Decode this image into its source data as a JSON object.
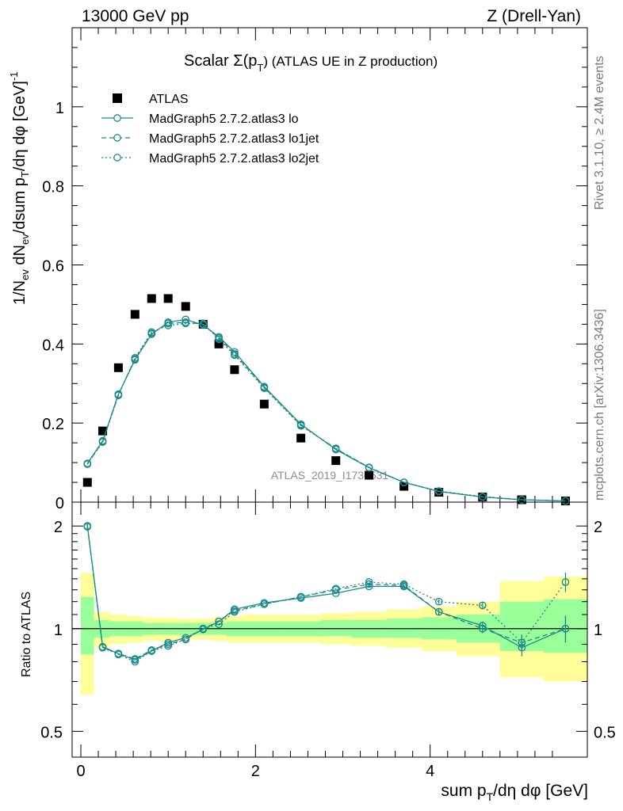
{
  "header": {
    "left": "13000 GeV pp",
    "right": "Z (Drell-Yan)"
  },
  "side_text": {
    "rivet": "Rivet 3.1.10, ≥ 2.4M events",
    "mcplots": "mcplots.cern.ch [arXiv:1306.3436]"
  },
  "chart_data": [
    {
      "type": "line",
      "panel": "main",
      "title_main": "Scalar Σ(p",
      "title_sub": "T",
      "title_end": ") (ATLAS UE in Z production)",
      "ylabel": "1/N_ev dN_ev/dsum p_T/dη dφ [GeV]^-1",
      "watermark": "ATLAS_2019_I1736531",
      "xlim": [
        -0.1,
        5.8
      ],
      "ylim": [
        0,
        1.2
      ],
      "yticks": [
        0,
        0.2,
        0.4,
        0.6,
        0.8,
        1
      ],
      "ytick_labels": [
        "0",
        "0.2",
        "0.4",
        "0.6",
        "0.8",
        "1"
      ],
      "legend_position": "top-left",
      "x": [
        0.075,
        0.25,
        0.43,
        0.62,
        0.81,
        1.0,
        1.2,
        1.4,
        1.58,
        1.76,
        2.1,
        2.52,
        2.92,
        3.3,
        3.7,
        4.1,
        4.6,
        5.05,
        5.55
      ],
      "series": [
        {
          "name": "ATLAS",
          "style": "marker",
          "color": "#000000",
          "values": [
            0.05,
            0.18,
            0.34,
            0.475,
            0.515,
            0.515,
            0.495,
            0.45,
            0.4,
            0.335,
            0.248,
            0.162,
            0.105,
            0.068,
            0.04,
            0.025,
            0.013,
            0.006,
            0.003
          ]
        },
        {
          "name": "MadGraph5 2.7.2.atlas3 lo",
          "style": "solid",
          "color": "#1b8a8a",
          "values": [
            0.098,
            0.155,
            0.273,
            0.36,
            0.425,
            0.455,
            0.462,
            0.448,
            0.418,
            0.38,
            0.292,
            0.197,
            0.133,
            0.087,
            0.05,
            0.027,
            0.013,
            0.006,
            0.003
          ]
        },
        {
          "name": "MadGraph5 2.7.2.atlas3 lo1jet",
          "style": "dashed",
          "color": "#1b8a8a",
          "values": [
            0.097,
            0.153,
            0.272,
            0.362,
            0.427,
            0.452,
            0.455,
            0.45,
            0.415,
            0.375,
            0.29,
            0.195,
            0.135,
            0.088,
            0.05,
            0.027,
            0.013,
            0.006,
            0.003
          ]
        },
        {
          "name": "MadGraph5 2.7.2.atlas3 lo2jet",
          "style": "dotted",
          "color": "#1b8a8a",
          "values": [
            0.096,
            0.152,
            0.27,
            0.365,
            0.43,
            0.447,
            0.452,
            0.452,
            0.412,
            0.372,
            0.288,
            0.193,
            0.136,
            0.087,
            0.05,
            0.028,
            0.014,
            0.006,
            0.003
          ]
        }
      ]
    },
    {
      "type": "line",
      "panel": "ratio",
      "ylabel": "Ratio to ATLAS",
      "xlabel_main": "sum p",
      "xlabel_sub": "T",
      "xlabel_end": "/dη dφ [GeV]",
      "xlim": [
        -0.1,
        5.8
      ],
      "ylim": [
        0.42,
        2.35
      ],
      "scale": "log",
      "xticks": [
        0,
        2,
        4
      ],
      "xtick_labels": [
        "0",
        "2",
        "4"
      ],
      "yticks": [
        0.5,
        1,
        2
      ],
      "ytick_labels": [
        "0.5",
        "1",
        "2"
      ],
      "band_edges": [
        0,
        0.15,
        0.33,
        0.52,
        0.71,
        0.9,
        1.1,
        1.3,
        1.5,
        1.67,
        1.86,
        2.3,
        2.75,
        3.1,
        3.5,
        3.9,
        4.3,
        4.8,
        5.3,
        5.8
      ],
      "yellow_lo": [
        0.64,
        0.88,
        0.9,
        0.91,
        0.92,
        0.92,
        0.93,
        0.93,
        0.92,
        0.91,
        0.91,
        0.91,
        0.9,
        0.89,
        0.88,
        0.86,
        0.83,
        0.72,
        0.7
      ],
      "yellow_hi": [
        1.46,
        1.12,
        1.1,
        1.09,
        1.08,
        1.08,
        1.07,
        1.07,
        1.08,
        1.09,
        1.1,
        1.1,
        1.11,
        1.12,
        1.14,
        1.16,
        1.2,
        1.38,
        1.42
      ],
      "green_lo": [
        0.84,
        0.94,
        0.95,
        0.95,
        0.96,
        0.96,
        0.96,
        0.96,
        0.96,
        0.95,
        0.95,
        0.95,
        0.95,
        0.94,
        0.94,
        0.93,
        0.91,
        0.86,
        0.85
      ],
      "green_hi": [
        1.24,
        1.06,
        1.05,
        1.05,
        1.04,
        1.04,
        1.04,
        1.04,
        1.04,
        1.05,
        1.05,
        1.05,
        1.06,
        1.06,
        1.07,
        1.08,
        1.1,
        1.2,
        1.22
      ],
      "yellow_color": "#ffff99",
      "green_color": "#99ff99",
      "x": [
        0.075,
        0.25,
        0.43,
        0.62,
        0.81,
        1.0,
        1.2,
        1.4,
        1.58,
        1.76,
        2.1,
        2.52,
        2.92,
        3.3,
        3.7,
        4.1,
        4.6,
        5.05,
        5.55
      ],
      "series": [
        {
          "name": "MadGraph5 2.7.2.atlas3 lo",
          "style": "solid",
          "color": "#1b8a8a",
          "values": [
            2.0,
            0.885,
            0.845,
            0.81,
            0.86,
            0.91,
            0.94,
            0.995,
            1.05,
            1.14,
            1.19,
            1.23,
            1.27,
            1.33,
            1.33,
            1.12,
            1.02,
            0.88,
            1.0
          ],
          "errors": [
            0.03,
            0.01,
            0.01,
            0.01,
            0.01,
            0.01,
            0.01,
            0.01,
            0.01,
            0.01,
            0.01,
            0.01,
            0.01,
            0.01,
            0.02,
            0.02,
            0.03,
            0.05,
            0.09
          ]
        },
        {
          "name": "MadGraph5 2.7.2.atlas3 lo1jet",
          "style": "dashed",
          "color": "#1b8a8a",
          "values": [
            2.0,
            0.88,
            0.845,
            0.815,
            0.865,
            0.9,
            0.93,
            1.0,
            1.05,
            1.13,
            1.18,
            1.24,
            1.3,
            1.35,
            1.34,
            1.12,
            1.0,
            0.91,
            1.0
          ],
          "errors": [
            0.03,
            0.01,
            0.01,
            0.01,
            0.01,
            0.01,
            0.01,
            0.01,
            0.01,
            0.01,
            0.01,
            0.01,
            0.01,
            0.01,
            0.02,
            0.02,
            0.03,
            0.05,
            0.09
          ]
        },
        {
          "name": "MadGraph5 2.7.2.atlas3 lo2jet",
          "style": "dotted",
          "color": "#1b8a8a",
          "values": [
            1.99,
            0.88,
            0.84,
            0.8,
            0.86,
            0.89,
            0.93,
            1.0,
            1.03,
            1.12,
            1.18,
            1.24,
            1.31,
            1.37,
            1.35,
            1.2,
            1.17,
            0.91,
            1.37
          ],
          "errors": [
            0.03,
            0.01,
            0.01,
            0.01,
            0.01,
            0.01,
            0.01,
            0.01,
            0.01,
            0.01,
            0.01,
            0.01,
            0.01,
            0.01,
            0.02,
            0.02,
            0.03,
            0.05,
            0.09
          ]
        }
      ]
    }
  ]
}
